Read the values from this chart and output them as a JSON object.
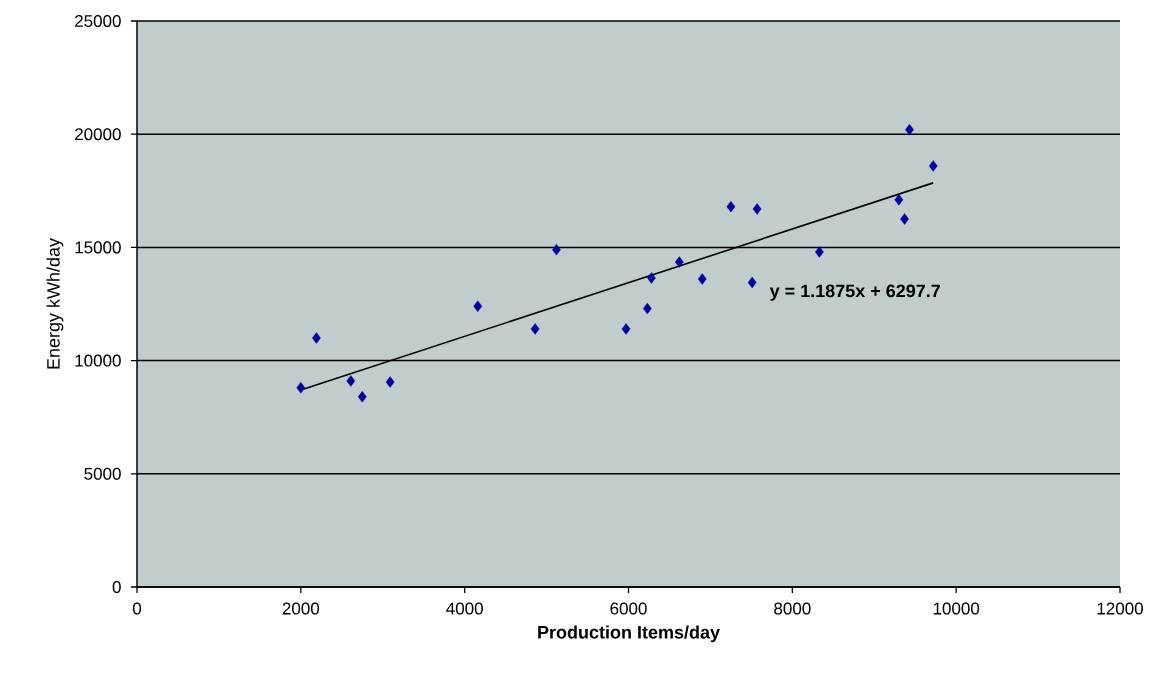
{
  "chart_data": {
    "type": "scatter",
    "xlabel": "Production Items/day",
    "ylabel": "Energy kWh/day",
    "annotations": [
      "y = 1.1875x + 6297.7"
    ],
    "xlim": [
      0,
      12000
    ],
    "xticks": [
      0,
      2000,
      4000,
      6000,
      8000,
      10000,
      12000
    ],
    "ylim": [
      0,
      25000
    ],
    "yticks": [
      0,
      5000,
      10000,
      15000,
      20000,
      25000
    ],
    "grid": "y",
    "marker": "diamond",
    "series": [
      {
        "color": "#0000a0",
        "x": [
          2000,
          2190,
          2610,
          2750,
          3090,
          4160,
          4860,
          5120,
          5970,
          6230,
          6280,
          6620,
          6900,
          7250,
          7510,
          7570,
          8330,
          9300,
          9370,
          9430,
          9720
        ],
        "values": [
          8800,
          11000,
          9100,
          8400,
          9050,
          12400,
          11400,
          14900,
          11400,
          12300,
          13650,
          14350,
          13600,
          16800,
          13450,
          16700,
          14800,
          17100,
          16250,
          20200,
          18600
        ]
      },
      {
        "type": "line",
        "color": "#000000",
        "marker": "none",
        "x": [
          2000,
          9720
        ],
        "values": [
          8700,
          17850
        ]
      }
    ]
  }
}
